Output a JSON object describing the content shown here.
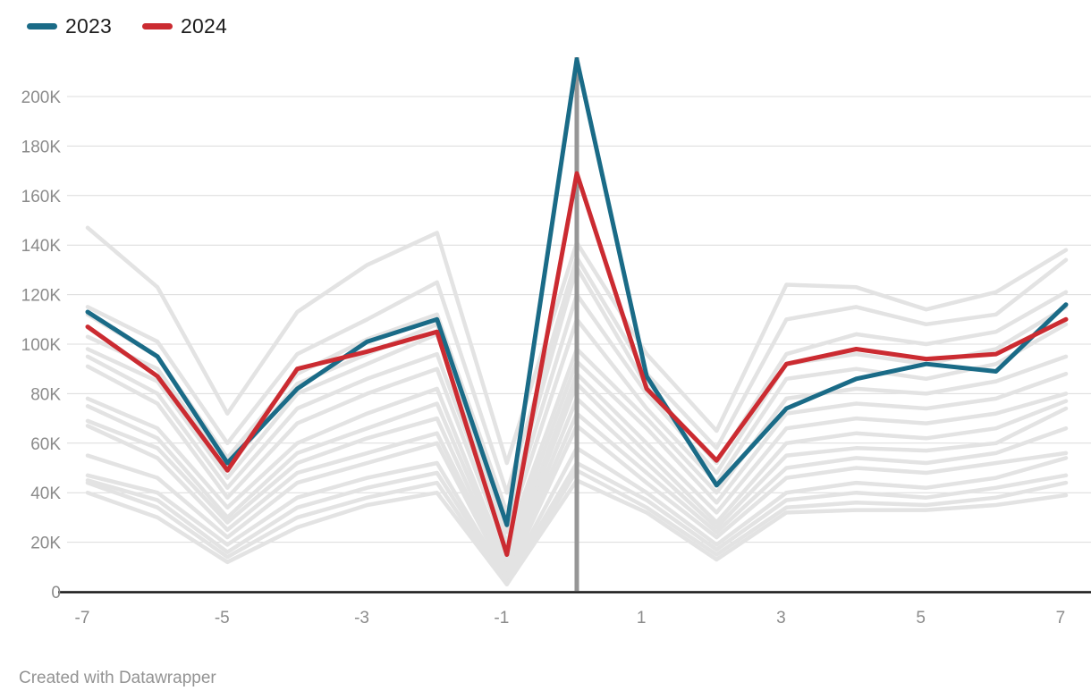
{
  "legend": {
    "items": [
      {
        "label": "2023",
        "color": "#1a6b87"
      },
      {
        "label": "2024",
        "color": "#cb2b31"
      }
    ]
  },
  "footer": {
    "credit": "Created with Datawrapper"
  },
  "chart_data": {
    "type": "line",
    "title": "",
    "xlabel": "",
    "ylabel": "",
    "x": [
      -7,
      -6,
      -5,
      -4,
      -3,
      -2,
      -1,
      0,
      1,
      2,
      3,
      4,
      5,
      6,
      7
    ],
    "series": [
      {
        "name": "2023",
        "color": "#1a6b87",
        "values": [
          113000,
          95000,
          52000,
          82000,
          101000,
          110000,
          27000,
          215000,
          87000,
          43000,
          74000,
          86000,
          92000,
          89000,
          116000
        ]
      },
      {
        "name": "2024",
        "color": "#cb2b31",
        "values": [
          107000,
          87000,
          49000,
          90000,
          97000,
          105000,
          15000,
          169000,
          82000,
          53000,
          92000,
          98000,
          94000,
          96000,
          110000
        ]
      }
    ],
    "background_series": {
      "color": "#e3e3e3",
      "values": [
        [
          147000,
          123000,
          72000,
          113000,
          132000,
          145000,
          52000,
          141000,
          96000,
          65000,
          124000,
          123000,
          114000,
          121000,
          138000
        ],
        [
          115000,
          101000,
          60000,
          96000,
          110000,
          125000,
          40000,
          135000,
          88000,
          58000,
          110000,
          115000,
          108000,
          112000,
          134000
        ],
        [
          112000,
          95000,
          54000,
          88000,
          102000,
          112000,
          32000,
          131000,
          83000,
          52000,
          96000,
          104000,
          100000,
          105000,
          121000
        ],
        [
          103000,
          90000,
          50000,
          84000,
          96000,
          108000,
          28000,
          120000,
          80000,
          48000,
          92000,
          96000,
          92000,
          98000,
          115000
        ],
        [
          98000,
          85000,
          46000,
          80000,
          92000,
          104000,
          24000,
          110000,
          74000,
          44000,
          86000,
          90000,
          86000,
          92000,
          108000
        ],
        [
          95000,
          80000,
          42000,
          74000,
          86000,
          96000,
          20000,
          98000,
          70000,
          40000,
          78000,
          82000,
          80000,
          85000,
          95000
        ],
        [
          91000,
          76000,
          38000,
          68000,
          80000,
          90000,
          16000,
          93000,
          66000,
          36000,
          72000,
          76000,
          74000,
          78000,
          88000
        ],
        [
          78000,
          66000,
          34000,
          60000,
          72000,
          82000,
          12000,
          88000,
          60000,
          32000,
          66000,
          70000,
          68000,
          72000,
          80000
        ],
        [
          75000,
          62000,
          30000,
          56000,
          66000,
          76000,
          10000,
          84000,
          56000,
          28000,
          60000,
          64000,
          62000,
          66000,
          77000
        ],
        [
          69000,
          58000,
          28000,
          52000,
          62000,
          70000,
          8000,
          78000,
          52000,
          26000,
          55000,
          58000,
          57000,
          60000,
          74000
        ],
        [
          67000,
          54000,
          25000,
          48000,
          56000,
          64000,
          7000,
          72000,
          48000,
          24000,
          50000,
          54000,
          52000,
          56000,
          66000
        ],
        [
          55000,
          46000,
          22000,
          44000,
          52000,
          60000,
          6000,
          67000,
          44000,
          22000,
          46000,
          50000,
          48000,
          52000,
          56000
        ],
        [
          47000,
          40000,
          19000,
          38000,
          46000,
          52000,
          5000,
          58000,
          40000,
          19000,
          40000,
          44000,
          42000,
          46000,
          54000
        ],
        [
          45000,
          37000,
          16000,
          34000,
          42000,
          48000,
          4000,
          52000,
          37000,
          17000,
          37000,
          40000,
          38000,
          42000,
          47000
        ],
        [
          44000,
          34000,
          14000,
          30000,
          38000,
          44000,
          3000,
          49000,
          34000,
          15000,
          34000,
          36000,
          35000,
          38000,
          44000
        ],
        [
          40000,
          30000,
          12000,
          26000,
          35000,
          40000,
          3000,
          45000,
          32000,
          13000,
          32000,
          33000,
          33000,
          35000,
          39000
        ]
      ]
    },
    "marker": {
      "x": 0,
      "color": "#969696"
    },
    "axes": {
      "ylim": [
        0,
        200000
      ],
      "yticks": [
        {
          "v": 0,
          "label": "0"
        },
        {
          "v": 20000,
          "label": "20K"
        },
        {
          "v": 40000,
          "label": "40K"
        },
        {
          "v": 60000,
          "label": "60K"
        },
        {
          "v": 80000,
          "label": "80K"
        },
        {
          "v": 100000,
          "label": "100K"
        },
        {
          "v": 120000,
          "label": "120K"
        },
        {
          "v": 140000,
          "label": "140K"
        },
        {
          "v": 160000,
          "label": "160K"
        },
        {
          "v": 180000,
          "label": "180K"
        },
        {
          "v": 200000,
          "label": "200K"
        }
      ],
      "xticks": [
        {
          "v": -7,
          "label": "-7"
        },
        {
          "v": -5,
          "label": "-5"
        },
        {
          "v": -3,
          "label": "-3"
        },
        {
          "v": -1,
          "label": "-1"
        },
        {
          "v": 1,
          "label": "1"
        },
        {
          "v": 3,
          "label": "3"
        },
        {
          "v": 5,
          "label": "5"
        },
        {
          "v": 7,
          "label": "7"
        }
      ],
      "grid": true,
      "gridline_color": "#dcdcdc",
      "axis_line_color": "#161616",
      "tick_label_color": "#8b8b8b"
    },
    "legend_position": "top-left"
  }
}
